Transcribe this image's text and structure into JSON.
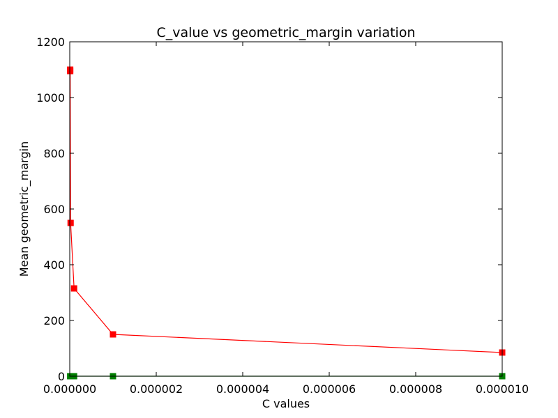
{
  "chart_data": {
    "type": "line",
    "title": "C_value vs geometric_margin variation",
    "xlabel": "C values",
    "ylabel": "Mean geometric_margin",
    "xlim": [
      0,
      1e-05
    ],
    "ylim": [
      0,
      1200
    ],
    "xticks": [
      0,
      2e-06,
      4e-06,
      6e-06,
      8e-06,
      1e-05
    ],
    "xtick_labels": [
      "0.000000",
      "0.000002",
      "0.000004",
      "0.000006",
      "0.000008",
      "0.000010"
    ],
    "yticks": [
      0,
      200,
      400,
      600,
      800,
      1000,
      1200
    ],
    "ytick_labels": [
      "0",
      "200",
      "400",
      "600",
      "800",
      "1000",
      "1200"
    ],
    "grid": false,
    "series": [
      {
        "color": "#ff0000",
        "marker": "square",
        "x": [
          1e-08,
          1e-08,
          2e-08,
          1e-07,
          1e-06,
          1e-05
        ],
        "y": [
          1100,
          1095,
          550,
          315,
          150,
          85
        ]
      },
      {
        "color": "#008000",
        "marker": "square",
        "x": [
          1e-08,
          2e-08,
          1e-07,
          1e-06,
          1e-05
        ],
        "y": [
          0,
          0,
          0,
          0,
          0
        ]
      }
    ]
  }
}
